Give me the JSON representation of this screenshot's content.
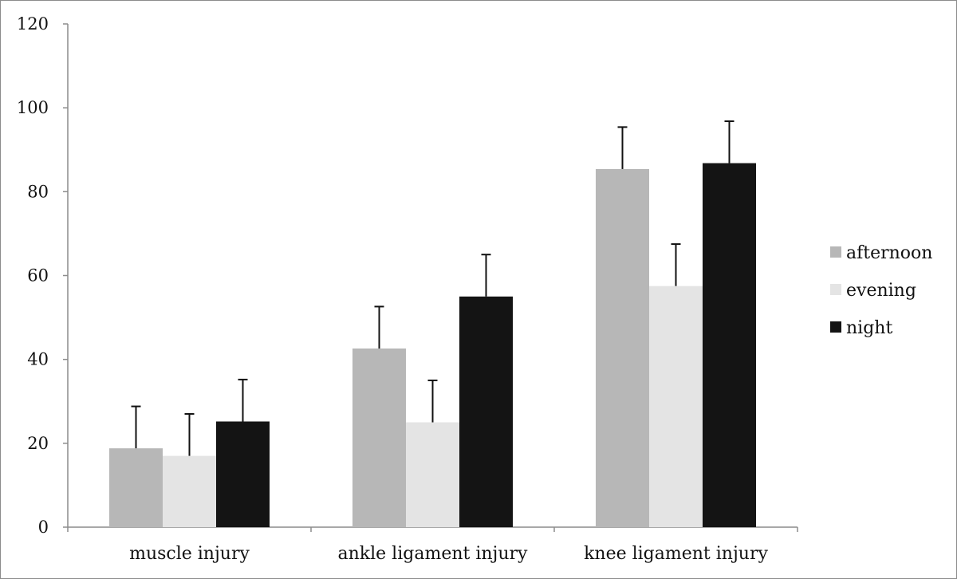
{
  "chart_data": {
    "type": "bar",
    "title": "",
    "xlabel": "",
    "ylabel": "",
    "ylim": [
      0,
      120
    ],
    "yticks": [
      0,
      20,
      40,
      60,
      80,
      100,
      120
    ],
    "categories": [
      "muscle injury",
      "ankle ligament injury",
      "knee ligament injury"
    ],
    "series": [
      {
        "name": "afternoon",
        "color": "#b7b7b7",
        "values": [
          18.8,
          42.6,
          85.4
        ],
        "errors": [
          10.0,
          10.0,
          10.0
        ]
      },
      {
        "name": "evening",
        "color": "#e4e4e4",
        "values": [
          17.0,
          25.0,
          57.5
        ],
        "errors": [
          10.0,
          10.0,
          10.0
        ]
      },
      {
        "name": "night",
        "color": "#141414",
        "values": [
          25.2,
          55.0,
          86.8
        ],
        "errors": [
          10.0,
          10.0,
          10.0
        ]
      }
    ],
    "error_bars": "upper",
    "grid": false,
    "legend_position": "right"
  }
}
